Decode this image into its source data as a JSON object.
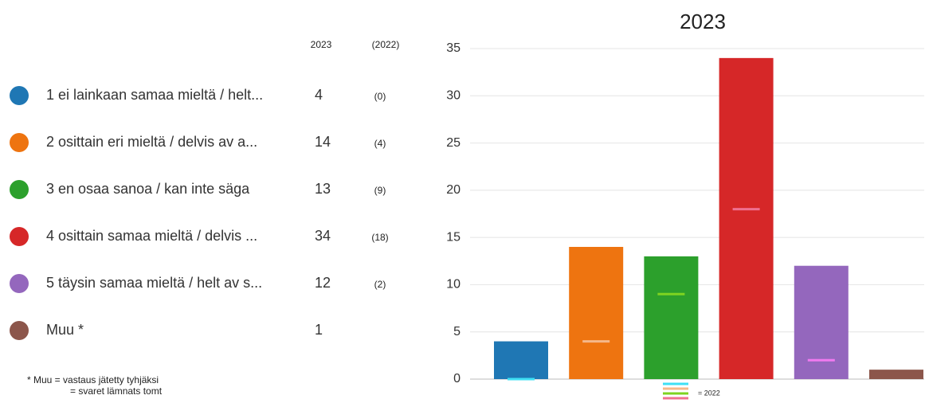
{
  "chart_data": {
    "type": "bar",
    "title": "2023",
    "categories": [
      "1 ei lainkaan samaa mieltä / helt...",
      "2 osittain eri mieltä / delvis av a...",
      "3 en osaa sanoa / kan inte säga",
      "4 osittain samaa mieltä / delvis ...",
      "5 täysin samaa mieltä / helt av s...",
      "Muu *"
    ],
    "series": [
      {
        "name": "2023",
        "colors": [
          "#1f77b4",
          "#ee7410",
          "#2ca02c",
          "#d62728",
          "#9467bd",
          "#8c564b"
        ],
        "values": [
          4,
          14,
          13,
          34,
          12,
          1
        ]
      },
      {
        "name": "(2022)",
        "colors": [
          "#3ee0f5",
          "#f5b88a",
          "#7ed321",
          "#f07090",
          "#f07af0",
          "#c08070"
        ],
        "values": [
          0,
          4,
          9,
          18,
          2,
          null
        ],
        "value_labels": [
          "(0)",
          "(4)",
          "(9)",
          "(18)",
          "(2)",
          null
        ]
      }
    ],
    "legend_label": "= 2022",
    "ylim": [
      0,
      35
    ],
    "yticks": [
      0,
      5,
      10,
      15,
      20,
      25,
      30,
      35
    ],
    "grid": true,
    "footnote": [
      "* Muu = vastaus jätetty tyhjäksi",
      "= svaret lämnats tomt"
    ]
  }
}
